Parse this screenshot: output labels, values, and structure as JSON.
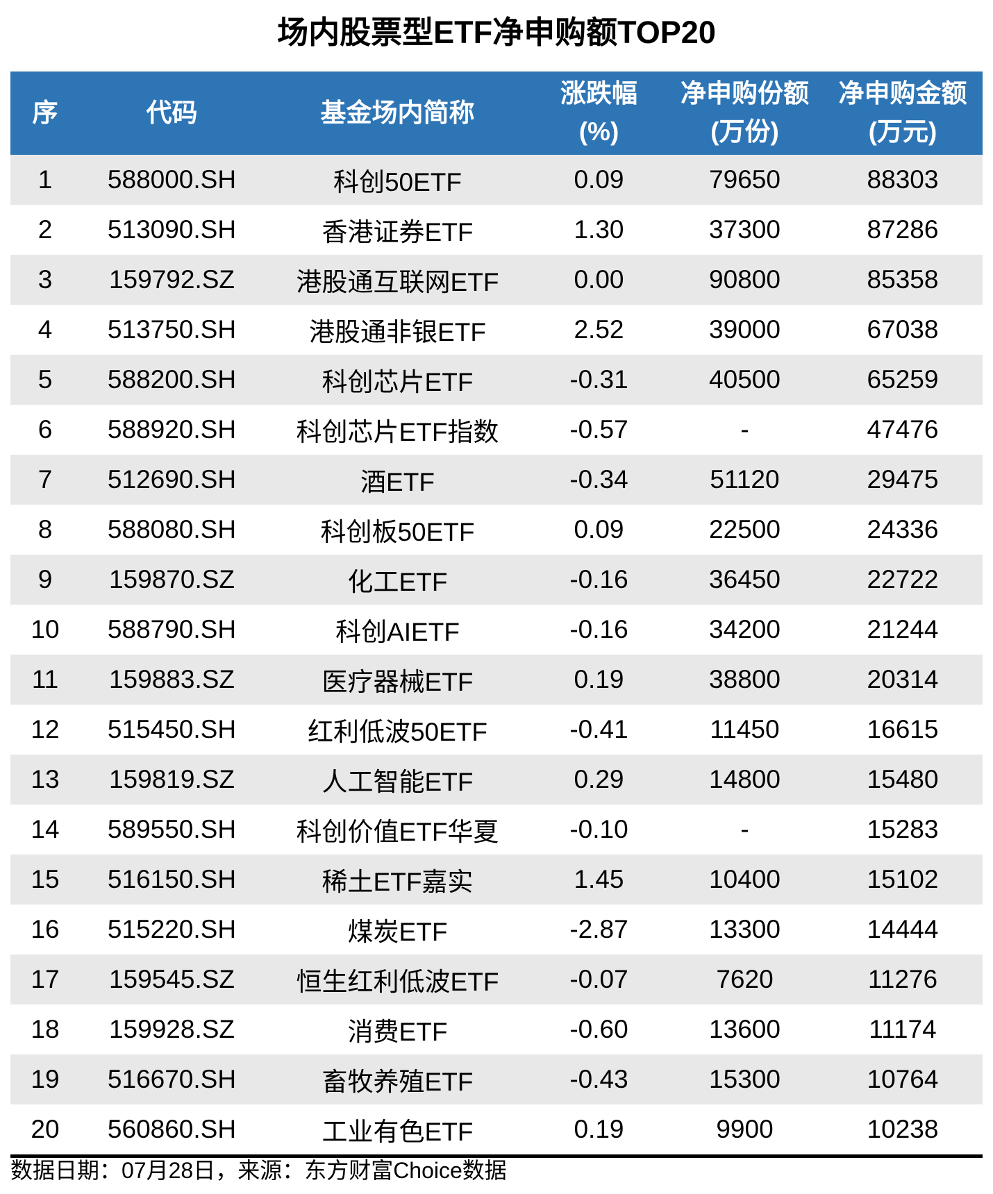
{
  "title": "场内股票型ETF净申购额TOP20",
  "table": {
    "header_lines": [
      [
        "序",
        ""
      ],
      [
        "代码",
        ""
      ],
      [
        "基金场内简称",
        ""
      ],
      [
        "涨跌幅",
        "(%)"
      ],
      [
        "净申购份额",
        "(万份)"
      ],
      [
        "净申购金额",
        "(万元)"
      ]
    ]
  },
  "chart_data": {
    "type": "table",
    "title": "场内股票型ETF净申购额TOP20",
    "columns": [
      "序",
      "代码",
      "基金场内简称",
      "涨跌幅(%)",
      "净申购份额(万份)",
      "净申购金额(万元)"
    ],
    "rows": [
      [
        "1",
        "588000.SH",
        "科创50ETF",
        "0.09",
        "79650",
        "88303"
      ],
      [
        "2",
        "513090.SH",
        "香港证券ETF",
        "1.30",
        "37300",
        "87286"
      ],
      [
        "3",
        "159792.SZ",
        "港股通互联网ETF",
        "0.00",
        "90800",
        "85358"
      ],
      [
        "4",
        "513750.SH",
        "港股通非银ETF",
        "2.52",
        "39000",
        "67038"
      ],
      [
        "5",
        "588200.SH",
        "科创芯片ETF",
        "-0.31",
        "40500",
        "65259"
      ],
      [
        "6",
        "588920.SH",
        "科创芯片ETF指数",
        "-0.57",
        "-",
        "47476"
      ],
      [
        "7",
        "512690.SH",
        "酒ETF",
        "-0.34",
        "51120",
        "29475"
      ],
      [
        "8",
        "588080.SH",
        "科创板50ETF",
        "0.09",
        "22500",
        "24336"
      ],
      [
        "9",
        "159870.SZ",
        "化工ETF",
        "-0.16",
        "36450",
        "22722"
      ],
      [
        "10",
        "588790.SH",
        "科创AIETF",
        "-0.16",
        "34200",
        "21244"
      ],
      [
        "11",
        "159883.SZ",
        "医疗器械ETF",
        "0.19",
        "38800",
        "20314"
      ],
      [
        "12",
        "515450.SH",
        "红利低波50ETF",
        "-0.41",
        "11450",
        "16615"
      ],
      [
        "13",
        "159819.SZ",
        "人工智能ETF",
        "0.29",
        "14800",
        "15480"
      ],
      [
        "14",
        "589550.SH",
        "科创价值ETF华夏",
        "-0.10",
        "-",
        "15283"
      ],
      [
        "15",
        "516150.SH",
        "稀土ETF嘉实",
        "1.45",
        "10400",
        "15102"
      ],
      [
        "16",
        "515220.SH",
        "煤炭ETF",
        "-2.87",
        "13300",
        "14444"
      ],
      [
        "17",
        "159545.SZ",
        "恒生红利低波ETF",
        "-0.07",
        "7620",
        "11276"
      ],
      [
        "18",
        "159928.SZ",
        "消费ETF",
        "-0.60",
        "13600",
        "11174"
      ],
      [
        "19",
        "516670.SH",
        "畜牧养殖ETF",
        "-0.43",
        "15300",
        "10764"
      ],
      [
        "20",
        "560860.SH",
        "工业有色ETF",
        "0.19",
        "9900",
        "10238"
      ]
    ]
  },
  "footer": {
    "text": "数据日期：07月28日，来源：东方财富Choice数据"
  },
  "colors": {
    "header_bg": "#2E75B6",
    "header_text": "#FFFFFF",
    "row_alt_bg": "#E8E8E8",
    "row_bg": "#FFFFFF",
    "body_text": "#000000",
    "divider": "#000000"
  }
}
